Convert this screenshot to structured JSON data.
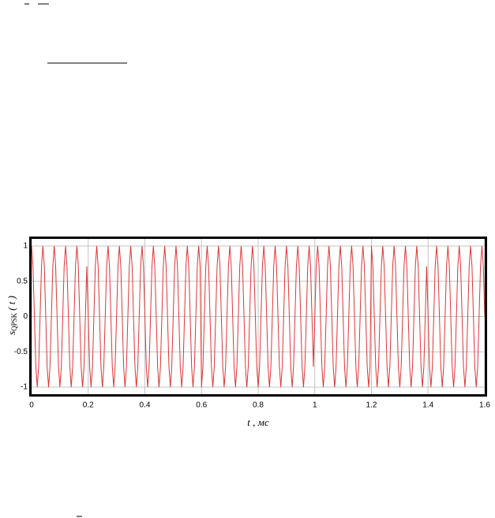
{
  "chart_data": {
    "type": "line",
    "x_label": "t , мс",
    "y_label": "s",
    "y_label_sub": "QPSK",
    "y_label_suffix": "( t )",
    "xlim": [
      0,
      1.6
    ],
    "ylim": [
      -1.1,
      1.1
    ],
    "xticks": [
      0,
      0.2,
      0.4,
      0.6,
      0.8,
      1,
      1.2,
      1.4,
      1.6
    ],
    "yticks": [
      -1,
      -0.5,
      0,
      0.5,
      1
    ],
    "grid": true,
    "x": [
      0,
      0.005,
      0.01,
      0.015,
      0.02,
      0.025,
      0.03,
      0.035,
      0.04,
      0.045,
      0.05,
      0.055,
      0.06,
      0.065,
      0.07,
      0.075,
      0.08,
      0.085,
      0.09,
      0.095,
      0.1,
      0.105,
      0.11,
      0.115,
      0.12,
      0.125,
      0.13,
      0.135,
      0.14,
      0.145,
      0.15,
      0.155,
      0.16,
      0.165,
      0.17,
      0.175,
      0.18,
      0.185,
      0.19,
      0.195,
      0.2,
      0.205,
      0.21,
      0.215,
      0.22,
      0.225,
      0.23,
      0.235,
      0.24,
      0.245,
      0.25,
      0.255,
      0.26,
      0.265,
      0.27,
      0.275,
      0.28,
      0.285,
      0.29,
      0.295,
      0.3,
      0.305,
      0.31,
      0.315,
      0.32,
      0.325,
      0.33,
      0.335,
      0.34,
      0.345,
      0.35,
      0.355,
      0.36,
      0.365,
      0.37,
      0.375,
      0.38,
      0.385,
      0.39,
      0.395,
      0.4,
      0.405,
      0.41,
      0.415,
      0.42,
      0.425,
      0.43,
      0.435,
      0.44,
      0.445,
      0.45,
      0.455,
      0.46,
      0.465,
      0.47,
      0.475,
      0.48,
      0.485,
      0.49,
      0.495,
      0.5,
      0.505,
      0.51,
      0.515,
      0.52,
      0.525,
      0.53,
      0.535,
      0.54,
      0.545,
      0.55,
      0.555,
      0.56,
      0.565,
      0.57,
      0.575,
      0.58,
      0.585,
      0.59,
      0.595,
      0.6,
      0.605,
      0.61,
      0.615,
      0.62,
      0.625,
      0.63,
      0.635,
      0.64,
      0.645,
      0.65,
      0.655,
      0.66,
      0.665,
      0.67,
      0.675,
      0.68,
      0.685,
      0.69,
      0.695,
      0.7,
      0.705,
      0.71,
      0.715,
      0.72,
      0.725,
      0.73,
      0.735,
      0.74,
      0.745,
      0.75,
      0.755,
      0.76,
      0.765,
      0.77,
      0.775,
      0.78,
      0.785,
      0.79,
      0.795,
      0.8,
      0.805,
      0.81,
      0.815,
      0.82,
      0.825,
      0.83,
      0.835,
      0.84,
      0.845,
      0.85,
      0.855,
      0.86,
      0.865,
      0.87,
      0.875,
      0.88,
      0.885,
      0.89,
      0.895,
      0.9,
      0.905,
      0.91,
      0.915,
      0.92,
      0.925,
      0.93,
      0.935,
      0.94,
      0.945,
      0.95,
      0.955,
      0.96,
      0.965,
      0.97,
      0.975,
      0.98,
      0.985,
      0.99,
      0.995,
      1,
      1.005,
      1.01,
      1.015,
      1.02,
      1.025,
      1.03,
      1.035,
      1.04,
      1.045,
      1.05,
      1.055,
      1.06,
      1.065,
      1.07,
      1.075,
      1.08,
      1.085,
      1.09,
      1.095,
      1.1,
      1.105,
      1.11,
      1.115,
      1.12,
      1.125,
      1.13,
      1.135,
      1.14,
      1.145,
      1.15,
      1.155,
      1.16,
      1.165,
      1.17,
      1.175,
      1.18,
      1.185,
      1.19,
      1.195,
      1.2,
      1.205,
      1.21,
      1.215,
      1.22,
      1.225,
      1.23,
      1.235,
      1.24,
      1.245,
      1.25,
      1.255,
      1.26,
      1.265,
      1.27,
      1.275,
      1.28,
      1.285,
      1.29,
      1.295,
      1.3,
      1.305,
      1.31,
      1.315,
      1.32,
      1.325,
      1.33,
      1.335,
      1.34,
      1.345,
      1.35,
      1.355,
      1.36,
      1.365,
      1.37,
      1.375,
      1.38,
      1.385,
      1.39,
      1.395,
      1.4,
      1.405,
      1.41,
      1.415,
      1.42,
      1.425,
      1.43,
      1.435,
      1.44,
      1.445,
      1.45,
      1.455,
      1.46,
      1.465,
      1.47,
      1.475,
      1.48,
      1.485,
      1.49,
      1.495,
      1.5,
      1.505,
      1.51,
      1.515,
      1.52,
      1.525,
      1.53,
      1.535,
      1.54,
      1.545,
      1.55,
      1.555,
      1.56,
      1.565,
      1.57,
      1.575,
      1.58,
      1.585,
      1.59,
      1.595,
      1.6
    ],
    "series": [
      {
        "color": "#e03535",
        "values": [
          1,
          0.71,
          0,
          -0.71,
          -1,
          -0.71,
          0,
          0.71,
          1,
          0.71,
          0,
          -0.71,
          -1,
          -0.71,
          0,
          0.71,
          1,
          0.71,
          0,
          -0.71,
          -1,
          -0.71,
          0,
          0.71,
          1,
          0.71,
          0,
          -0.71,
          -1,
          -0.71,
          0,
          0.71,
          1,
          0.71,
          0,
          -0.71,
          -1,
          -0.71,
          0,
          0.71,
          0,
          -0.71,
          -1,
          -0.71,
          0,
          0.71,
          1,
          0.71,
          0,
          -0.71,
          -1,
          -0.71,
          0,
          0.71,
          1,
          0.71,
          0,
          -0.71,
          -1,
          -0.71,
          0,
          0.71,
          1,
          0.71,
          0,
          -0.71,
          -1,
          -0.71,
          0,
          0.71,
          1,
          0.71,
          0,
          -0.71,
          -1,
          -0.71,
          0,
          0.71,
          1,
          0.71,
          0,
          -0.71,
          -1,
          -0.71,
          0,
          0.71,
          1,
          0.71,
          0,
          -0.71,
          -1,
          -0.71,
          0,
          0.71,
          1,
          0.71,
          0,
          -0.71,
          -1,
          -0.71,
          0,
          0.71,
          1,
          0.71,
          0,
          -0.71,
          -1,
          -0.71,
          0,
          0.71,
          1,
          0.71,
          0,
          -0.71,
          -1,
          -0.71,
          0,
          0.71,
          1,
          0.71,
          -1,
          -0.71,
          0,
          0.71,
          1,
          0.71,
          0,
          -0.71,
          -1,
          -0.71,
          0,
          0.71,
          1,
          0.71,
          0,
          -0.71,
          -1,
          -0.71,
          0,
          0.71,
          1,
          0.71,
          0,
          -0.71,
          -1,
          -0.71,
          0,
          0.71,
          1,
          0.71,
          0,
          -0.71,
          -1,
          -0.71,
          0,
          0.71,
          1,
          0.71,
          0,
          -0.71,
          -1,
          -0.71,
          0,
          0.71,
          1,
          0.71,
          0,
          -0.71,
          -1,
          -0.71,
          0,
          0.71,
          1,
          0.71,
          0,
          -0.71,
          -1,
          -0.71,
          0,
          0.71,
          1,
          0.71,
          0,
          -0.71,
          -1,
          -0.71,
          0,
          0.71,
          1,
          0.71,
          0,
          -0.71,
          -1,
          -0.71,
          0,
          0.71,
          1,
          0.71,
          0,
          -0.71,
          0,
          0.71,
          1,
          0.71,
          0,
          -0.71,
          -1,
          -0.71,
          0,
          0.71,
          1,
          0.71,
          0,
          -0.71,
          -1,
          -0.71,
          0,
          0.71,
          1,
          0.71,
          0,
          -0.71,
          -1,
          -0.71,
          0,
          0.71,
          1,
          0.71,
          0,
          -0.71,
          -1,
          -0.71,
          0,
          0.71,
          1,
          0.71,
          0,
          -0.71,
          -1,
          -0.71,
          1,
          0.71,
          0,
          -0.71,
          -1,
          -0.71,
          0,
          0.71,
          1,
          0.71,
          0,
          -0.71,
          -1,
          -0.71,
          0,
          0.71,
          1,
          0.71,
          0,
          -0.71,
          -1,
          -0.71,
          0,
          0.71,
          1,
          0.71,
          0,
          -0.71,
          -1,
          -0.71,
          0,
          0.71,
          1,
          0.71,
          0,
          -0.71,
          -1,
          -0.71,
          0,
          0.71,
          0,
          -0.71,
          -1,
          -0.71,
          0,
          0.71,
          1,
          0.71,
          0,
          -0.71,
          -1,
          -0.71,
          0,
          0.71,
          1,
          0.71,
          0,
          -0.71,
          -1,
          -0.71,
          0,
          0.71,
          1,
          0.71,
          0,
          -0.71,
          -1,
          -0.71,
          0,
          0.71,
          1,
          0.71,
          0,
          -0.71,
          -1,
          -0.71,
          0,
          0.71,
          1,
          0.71,
          0
        ]
      }
    ]
  }
}
